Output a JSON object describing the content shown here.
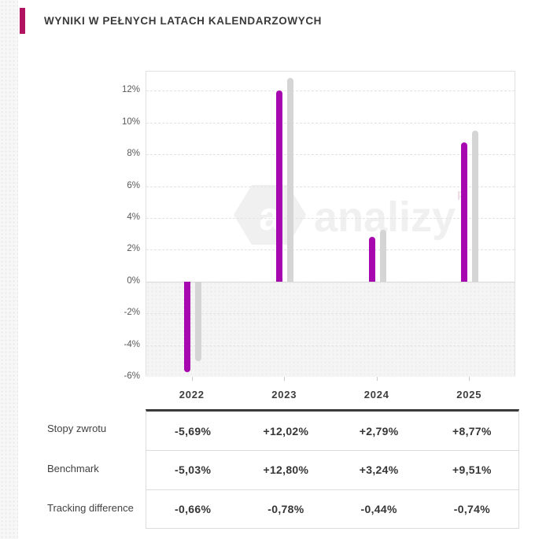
{
  "header": {
    "title": "WYNIKI W PEŁNYCH LATACH KALENDARZOWYCH",
    "accent_color": "#b11360"
  },
  "watermark": {
    "text": "analizy",
    "logo_letter": "a",
    "suffix": "pl"
  },
  "chart_data": {
    "type": "bar",
    "title": "Wyniki w pełnych latach kalendarzowych",
    "categories": [
      "2022",
      "2023",
      "2024",
      "2025"
    ],
    "series": [
      {
        "name": "Stopy zwrotu",
        "color": "#a607ae",
        "values": [
          -5.69,
          12.02,
          2.79,
          8.77
        ]
      },
      {
        "name": "Benchmark",
        "color": "#d5d5d5",
        "values": [
          -5.03,
          12.8,
          3.24,
          9.51
        ]
      }
    ],
    "yticks": [
      12,
      10,
      8,
      6,
      4,
      2,
      0,
      -2,
      -4,
      -6
    ],
    "ytick_suffix": "%",
    "ylim": [
      -6,
      13.2
    ],
    "grid": true,
    "grid_style": "dashed",
    "negative_region_shaded": true,
    "legend_position": "none"
  },
  "table": {
    "rows": [
      {
        "label": "Stopy zwrotu",
        "values": [
          "-5,69%",
          "+12,02%",
          "+2,79%",
          "+8,77%"
        ]
      },
      {
        "label": "Benchmark",
        "values": [
          "-5,03%",
          "+12,80%",
          "+3,24%",
          "+9,51%"
        ]
      },
      {
        "label": "Tracking difference",
        "values": [
          "-0,66%",
          "-0,78%",
          "-0,44%",
          "-0,74%"
        ]
      }
    ]
  },
  "colors": {
    "fund_bar": "#a607ae",
    "benchmark_bar": "#d5d5d5",
    "table_top_border": "#3a3a3a",
    "watermark_gray": "#f0f0f0",
    "watermark_pl": "#eddce5"
  }
}
